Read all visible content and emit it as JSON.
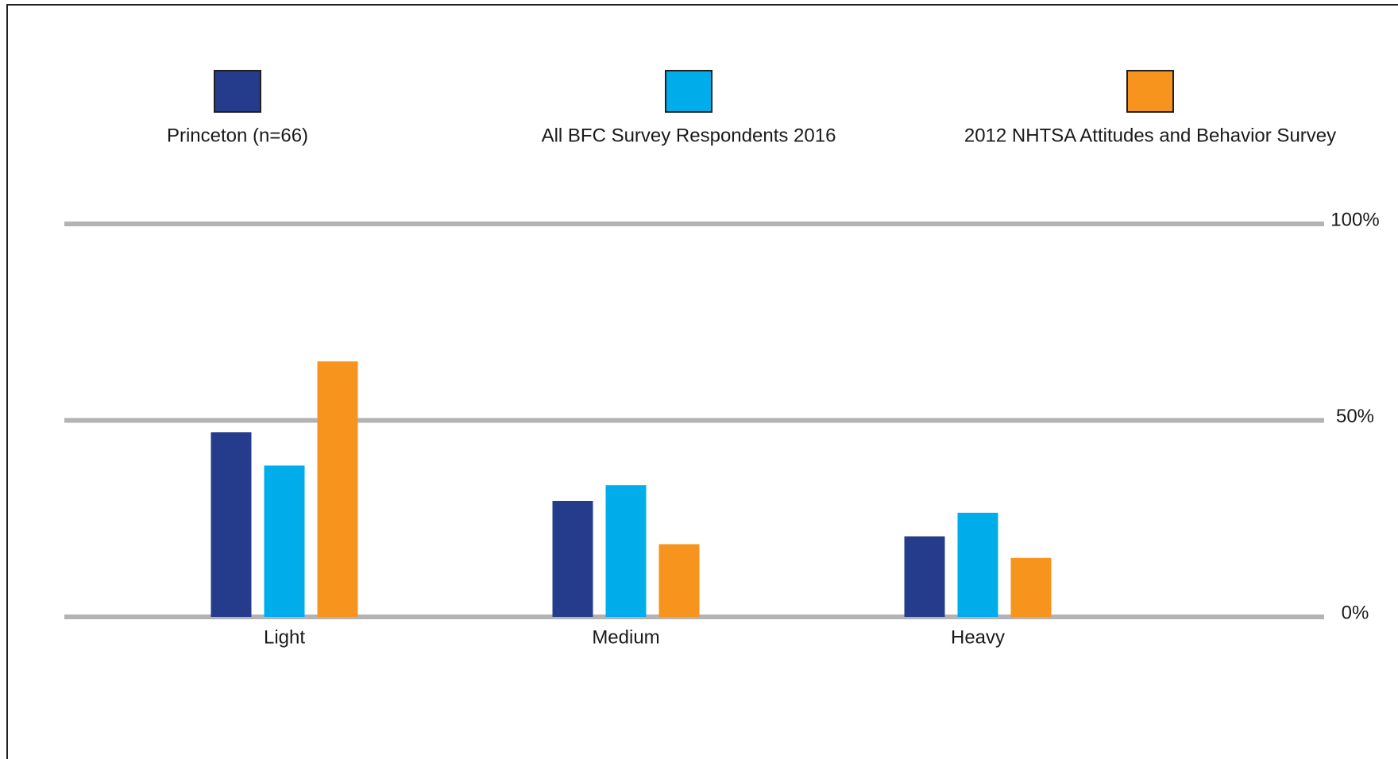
{
  "chart_data": {
    "type": "bar",
    "categories": [
      "Light",
      "Medium",
      "Heavy"
    ],
    "series": [
      {
        "name": "Princeton (n=66)",
        "color": "#253c8c",
        "values": [
          47,
          29.5,
          20.5
        ]
      },
      {
        "name": "All BFC Survey Respondents 2016",
        "color": "#00adeb",
        "values": [
          38.5,
          33.5,
          26.5
        ]
      },
      {
        "name": "2012 NHTSA Attitudes and Behavior Survey",
        "color": "#f7941e",
        "values": [
          65,
          18.5,
          15
        ]
      }
    ],
    "ylim": [
      0,
      100
    ],
    "yticks": [
      {
        "value": 0,
        "label": "0%"
      },
      {
        "value": 50,
        "label": "50%"
      },
      {
        "value": 100,
        "label": "100%"
      }
    ],
    "grid": true,
    "legend": "top"
  }
}
